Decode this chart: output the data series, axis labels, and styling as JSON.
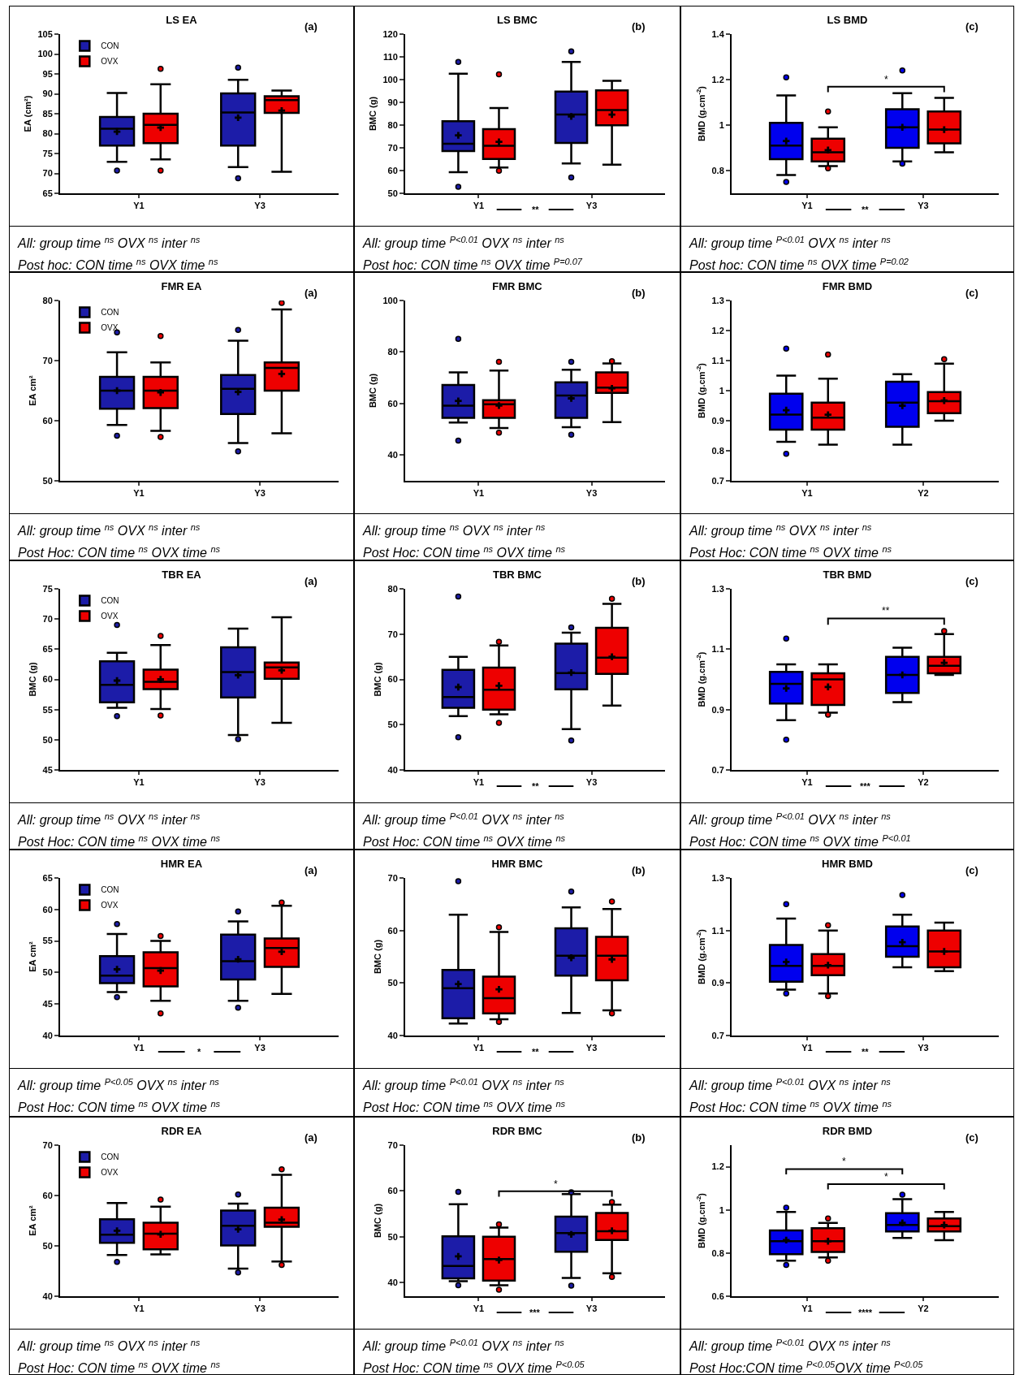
{
  "chart_data": [
    {
      "type": "box",
      "title": "LS EA",
      "subtitle": "(a)",
      "ylabel": "EA (cm²)",
      "categories": [
        "Y1",
        "Y3"
      ],
      "ylim": [
        65,
        105
      ],
      "yticks": [
        65,
        70,
        75,
        80,
        85,
        90,
        95,
        100,
        105
      ],
      "legend": "top left",
      "series": [
        {
          "name": "CON",
          "color": "#1c1ca8",
          "boxes": [
            {
              "low": 72.9,
              "q1": 77.0,
              "median": 81.2,
              "q3": 84.2,
              "high": 90.2,
              "mean": 80.5,
              "outliers": [
                70.7
              ]
            },
            {
              "low": 71.6,
              "q1": 77.0,
              "median": 85.3,
              "q3": 90.1,
              "high": 93.5,
              "mean": 84,
              "outliers": [
                96.6,
                68.8
              ]
            }
          ]
        },
        {
          "name": "OVX",
          "color": "#ee0000",
          "boxes": [
            {
              "low": 73.5,
              "q1": 77.6,
              "median": 82.2,
              "q3": 85.0,
              "high": 92.4,
              "mean": 81.5,
              "outliers": [
                96.3,
                70.7
              ]
            },
            {
              "low": 70.4,
              "q1": 85.2,
              "median": 88.4,
              "q3": 89.4,
              "high": 90.8,
              "mean": 85.8
            }
          ]
        }
      ],
      "annotations": [
        "All: group time $^{ns}$ OVX $^{ns}$ inter $^{ns}$",
        "Post hoc: CON time $^{ns}$ OVX time $^{ns}$"
      ]
    },
    {
      "type": "box",
      "title": "LS BMC",
      "subtitle": "(b)",
      "ylabel": "BMC (g)",
      "categories": [
        "Y1",
        "Y3"
      ],
      "ylim": [
        50,
        120
      ],
      "yticks": [
        50,
        60,
        70,
        80,
        90,
        100,
        110,
        120
      ],
      "series": [
        {
          "color": "#1c1ca8",
          "boxes": [
            {
              "low": 59.3,
              "q1": 68.6,
              "median": 71.8,
              "q3": 81.7,
              "high": 102.6,
              "mean": 75.5,
              "outliers": [
                107.8,
                52.9
              ]
            },
            {
              "low": 63.1,
              "q1": 72.1,
              "median": 84.6,
              "q3": 94.7,
              "high": 107.8,
              "mean": 83.8,
              "outliers": [
                112.4,
                57.0
              ]
            }
          ]
        },
        {
          "color": "#ee0000",
          "boxes": [
            {
              "low": 61.3,
              "q1": 65.1,
              "median": 70.9,
              "q3": 78.2,
              "high": 87.5,
              "mean": 72.6,
              "outliers": [
                102.3,
                59.9
              ]
            },
            {
              "low": 62.6,
              "q1": 79.9,
              "median": 86.6,
              "q3": 95.3,
              "high": 99.5,
              "mean": 84.6
            }
          ]
        }
      ],
      "annotations": [
        "**",
        "All: group time $^{P<0.01}$ OVX $^{ns}$ inter $^{ns}$",
        "Post hoc: CON time $^{ns}$ OVX time $^{P=0.07}$"
      ]
    },
    {
      "type": "box",
      "title": "LS BMD",
      "subtitle": "(c)",
      "ylabel": "BMD (g.cm$^{-2}$)",
      "categories": [
        "Y1",
        "Y3"
      ],
      "ylim": [
        0.7,
        1.4
      ],
      "yticks": [
        0.8,
        1.0,
        1.2,
        1.4
      ],
      "series": [
        {
          "color": "#0000ee",
          "boxes": [
            {
              "low": 0.78,
              "q1": 0.85,
              "median": 0.91,
              "q3": 1.01,
              "high": 1.13,
              "mean": 0.93,
              "outliers": [
                1.21,
                0.75
              ]
            },
            {
              "low": 0.84,
              "q1": 0.9,
              "median": 0.99,
              "q3": 1.07,
              "high": 1.14,
              "mean": 0.99,
              "outliers": [
                1.24,
                0.83
              ]
            }
          ]
        },
        {
          "color": "#ee0000",
          "boxes": [
            {
              "low": 0.82,
              "q1": 0.84,
              "median": 0.88,
              "q3": 0.94,
              "high": 0.99,
              "mean": 0.89,
              "outliers": [
                1.06,
                0.81
              ]
            },
            {
              "low": 0.88,
              "q1": 0.92,
              "median": 0.98,
              "q3": 1.06,
              "high": 1.12,
              "mean": 0.98
            }
          ]
        }
      ],
      "annotations": [
        "*",
        "**",
        "All: group time $^{P<0.01}$ OVX $^{ns}$ inter $^{ns}$",
        "Post hoc: CON time $^{ns}$ OVX time $^{P=0.02}$"
      ]
    },
    {
      "type": "box",
      "title": "FMR EA",
      "subtitle": "(a)",
      "ylabel": "EA cm²",
      "categories": [
        "Y1",
        "Y3"
      ],
      "ylim": [
        50,
        80
      ],
      "yticks": [
        50,
        60,
        70,
        80
      ],
      "legend": "top left",
      "series": [
        {
          "name": "CON",
          "color": "#1c1ca8",
          "boxes": [
            {
              "low": 59.3,
              "q1": 62.0,
              "median": 65.0,
              "q3": 67.3,
              "high": 71.4,
              "mean": 65,
              "outliers": [
                74.7,
                57.5
              ]
            },
            {
              "low": 56.3,
              "q1": 61.1,
              "median": 65.3,
              "q3": 67.6,
              "high": 73.3,
              "mean": 64.8,
              "outliers": [
                75.1,
                54.9
              ]
            }
          ]
        },
        {
          "name": "OVX",
          "color": "#ee0000",
          "boxes": [
            {
              "low": 58.3,
              "q1": 62.1,
              "median": 65.0,
              "q3": 67.3,
              "high": 69.7,
              "mean": 64.7,
              "outliers": [
                74.1,
                57.3
              ]
            },
            {
              "low": 57.9,
              "q1": 65.0,
              "median": 68.8,
              "q3": 69.7,
              "high": 78.5,
              "mean": 67.8,
              "outliers": [
                79.6
              ]
            }
          ]
        }
      ],
      "annotations": [
        "All: group time $^{ns}$ OVX $^{ns}$ inter $^{ns}$",
        "Post Hoc: CON time $^{ns}$ OVX time $^{ns}$"
      ]
    },
    {
      "type": "box",
      "title": "FMR BMC",
      "subtitle": "(b)",
      "ylabel": "BMC (g)",
      "categories": [
        "Y1",
        "Y3"
      ],
      "ylim": [
        30,
        100
      ],
      "yticks": [
        40,
        60,
        80,
        100
      ],
      "series": [
        {
          "color": "#1c1ca8",
          "boxes": [
            {
              "low": 52.6,
              "q1": 54.4,
              "median": 59.2,
              "q3": 67.2,
              "high": 72.1,
              "mean": 61,
              "outliers": [
                85.1,
                45.6
              ]
            },
            {
              "low": 50.8,
              "q1": 54.4,
              "median": 63.1,
              "q3": 68.2,
              "high": 73.1,
              "mean": 62,
              "outliers": [
                76.2,
                47.9
              ]
            }
          ]
        },
        {
          "color": "#ee0000",
          "boxes": [
            {
              "low": 50.5,
              "q1": 54.4,
              "median": 59.7,
              "q3": 61.3,
              "high": 72.8,
              "mean": 59.2,
              "outliers": [
                76.2,
                48.7
              ]
            },
            {
              "low": 52.8,
              "q1": 64.1,
              "median": 66.2,
              "q3": 72.1,
              "high": 75.6,
              "mean": 65.9,
              "outliers": [
                76.4
              ]
            }
          ]
        }
      ],
      "annotations": [
        "All: group time $^{ns}$ OVX $^{ns}$ inter $^{ns}$",
        "Post Hoc: CON time $^{ns}$ OVX time $^{ns}$"
      ]
    },
    {
      "type": "box",
      "title": "FMR BMD",
      "subtitle": "(c)",
      "ylabel": "BMD (g.cm$^{-2}$)",
      "categories": [
        "Y1",
        "Y2"
      ],
      "ylim": [
        0.7,
        1.3
      ],
      "yticks": [
        0.7,
        0.8,
        0.9,
        1.0,
        1.1,
        1.2,
        1.3
      ],
      "series": [
        {
          "color": "#0000ee",
          "boxes": [
            {
              "low": 0.83,
              "q1": 0.87,
              "median": 0.92,
              "q3": 0.99,
              "high": 1.05,
              "mean": 0.935,
              "outliers": [
                1.14,
                0.79
              ]
            },
            {
              "low": 0.82,
              "q1": 0.88,
              "median": 0.96,
              "q3": 1.03,
              "high": 1.055,
              "mean": 0.95
            }
          ]
        },
        {
          "color": "#ee0000",
          "boxes": [
            {
              "low": 0.82,
              "q1": 0.87,
              "median": 0.91,
              "q3": 0.96,
              "high": 1.04,
              "mean": 0.92,
              "outliers": [
                1.12
              ]
            },
            {
              "low": 0.9,
              "q1": 0.925,
              "median": 0.965,
              "q3": 0.995,
              "high": 1.09,
              "mean": 0.967,
              "outliers": [
                1.105
              ]
            }
          ]
        }
      ],
      "annotations": [
        "All: group time $^{ns}$ OVX $^{ns}$ inter $^{ns}$",
        "Post Hoc: CON time $^{ns}$ OVX time $^{ns}$"
      ]
    },
    {
      "type": "box",
      "title": "TBR EA",
      "subtitle": "(a)",
      "ylabel": "BMC (g)",
      "categories": [
        "Y1",
        "Y3"
      ],
      "ylim": [
        45,
        75
      ],
      "yticks": [
        45,
        50,
        55,
        60,
        65,
        70,
        75
      ],
      "legend": "top left",
      "series": [
        {
          "name": "CON",
          "color": "#1c1ca8",
          "boxes": [
            {
              "low": 55.3,
              "q1": 56.2,
              "median": 59.1,
              "q3": 63.0,
              "high": 64.4,
              "mean": 59.8,
              "outliers": [
                69.0,
                53.9
              ]
            },
            {
              "low": 50.8,
              "q1": 57.0,
              "median": 61.2,
              "q3": 65.3,
              "high": 68.4,
              "mean": 60.7,
              "outliers": [
                50.1
              ]
            }
          ]
        },
        {
          "name": "OVX",
          "color": "#ee0000",
          "boxes": [
            {
              "low": 55.1,
              "q1": 58.4,
              "median": 59.6,
              "q3": 61.6,
              "high": 65.7,
              "mean": 60,
              "outliers": [
                67.2,
                54.0
              ]
            },
            {
              "low": 52.8,
              "q1": 60.1,
              "median": 62.0,
              "q3": 62.8,
              "high": 70.3,
              "mean": 61.5
            }
          ]
        }
      ],
      "annotations": [
        "All: group time $^{ns}$ OVX $^{ns}$ inter $^{ns}$",
        "Post Hoc: CON time $^{ns}$ OVX time $^{ns}$"
      ]
    },
    {
      "type": "box",
      "title": "TBR BMC",
      "subtitle": "(b)",
      "ylabel": "BMC (g)",
      "categories": [
        "Y1",
        "Y3"
      ],
      "ylim": [
        40,
        80
      ],
      "yticks": [
        40,
        50,
        60,
        70,
        80
      ],
      "series": [
        {
          "color": "#1c1ca8",
          "boxes": [
            {
              "low": 51.9,
              "q1": 53.7,
              "median": 56.1,
              "q3": 62.1,
              "high": 65,
              "mean": 58.3,
              "outliers": [
                78.3,
                47.2
              ]
            },
            {
              "low": 49,
              "q1": 57.8,
              "median": 61.4,
              "q3": 67.9,
              "high": 70.3,
              "mean": 61.5,
              "outliers": [
                71.5,
                46.5
              ]
            }
          ]
        },
        {
          "color": "#ee0000",
          "boxes": [
            {
              "low": 52.3,
              "q1": 53.3,
              "median": 57.7,
              "q3": 62.6,
              "high": 67.5,
              "mean": 58.6,
              "outliers": [
                68.3,
                50.4
              ]
            },
            {
              "low": 54.2,
              "q1": 61.2,
              "median": 64.8,
              "q3": 71.4,
              "high": 76.7,
              "mean": 65,
              "outliers": [
                77.8
              ]
            }
          ]
        }
      ],
      "annotations": [
        "**",
        "All: group time $^{P<0.01}$ OVX $^{ns}$ inter $^{ns}$",
        "Post Hoc: CON time $^{ns}$ OVX time $^{ns}$"
      ]
    },
    {
      "type": "box",
      "title": "TBR BMD",
      "subtitle": "(c)",
      "ylabel": "BMD (g.cm$^{-2}$)",
      "categories": [
        "Y1",
        "Y2"
      ],
      "ylim": [
        0.7,
        1.3
      ],
      "yticks": [
        0.7,
        0.9,
        1.1,
        1.3
      ],
      "series": [
        {
          "color": "#0000ee",
          "boxes": [
            {
              "low": 0.865,
              "q1": 0.92,
              "median": 0.985,
              "q3": 1.025,
              "high": 1.05,
              "mean": 0.97,
              "outliers": [
                1.135,
                0.8
              ]
            },
            {
              "low": 0.925,
              "q1": 0.955,
              "median": 1.015,
              "q3": 1.075,
              "high": 1.105,
              "mean": 1.015
            }
          ]
        },
        {
          "color": "#ee0000",
          "boxes": [
            {
              "low": 0.89,
              "q1": 0.915,
              "median": 1.0,
              "q3": 1.02,
              "high": 1.05,
              "mean": 0.975,
              "outliers": [
                0.883
              ]
            },
            {
              "low": 1.015,
              "q1": 1.02,
              "median": 1.045,
              "q3": 1.075,
              "high": 1.15,
              "mean": 1.055,
              "outliers": [
                1.16
              ]
            }
          ]
        }
      ],
      "annotations": [
        "**",
        "***",
        "All: group time $^{P<0.01}$ OVX $^{ns}$ inter $^{ns}$",
        "Post Hoc: CON time $^{ns}$ OVX time $^{P<0.01}$"
      ]
    },
    {
      "type": "box",
      "title": "HMR EA",
      "subtitle": "(a)",
      "ylabel": "EA cm²",
      "categories": [
        "Y1",
        "Y3"
      ],
      "ylim": [
        40,
        65
      ],
      "yticks": [
        40,
        45,
        50,
        55,
        60,
        65
      ],
      "legend": "top left",
      "series": [
        {
          "name": "CON",
          "color": "#1c1ca8",
          "boxes": [
            {
              "low": 46.9,
              "q1": 48.3,
              "median": 49.5,
              "q3": 52.6,
              "high": 56.1,
              "mean": 50.5,
              "outliers": [
                57.7,
                46.1
              ]
            },
            {
              "low": 45.5,
              "q1": 48.9,
              "median": 51.8,
              "q3": 56.0,
              "high": 58.1,
              "mean": 52.1,
              "outliers": [
                59.7,
                44.4
              ]
            }
          ]
        },
        {
          "name": "OVX",
          "color": "#ee0000",
          "boxes": [
            {
              "low": 45.5,
              "q1": 47.8,
              "median": 50.7,
              "q3": 53.2,
              "high": 55.0,
              "mean": 50.3,
              "outliers": [
                55.8,
                43.5
              ]
            },
            {
              "low": 46.6,
              "q1": 50.9,
              "median": 53.9,
              "q3": 55.4,
              "high": 60.6,
              "mean": 53.3,
              "outliers": [
                61.1
              ]
            }
          ]
        }
      ],
      "annotations": [
        "*",
        "All: group time $^{P<0.05}$ OVX $^{ns}$ inter $^{ns}$",
        "Post Hoc: CON time $^{ns}$ OVX time $^{ns}$"
      ]
    },
    {
      "type": "box",
      "title": "HMR BMC",
      "subtitle": "(b)",
      "ylabel": "BMC (g)",
      "categories": [
        "Y1",
        "Y3"
      ],
      "ylim": [
        40,
        70
      ],
      "yticks": [
        40,
        50,
        60,
        70
      ],
      "series": [
        {
          "color": "#1c1ca8",
          "boxes": [
            {
              "low": 42.3,
              "q1": 43.3,
              "median": 49,
              "q3": 52.5,
              "high": 63,
              "mean": 49.8,
              "outliers": [
                69.4
              ]
            },
            {
              "low": 44.3,
              "q1": 51.4,
              "median": 55.2,
              "q3": 60.4,
              "high": 64.4,
              "mean": 54.8,
              "outliers": [
                67.4
              ]
            }
          ]
        },
        {
          "color": "#ee0000",
          "boxes": [
            {
              "low": 43.1,
              "q1": 44.2,
              "median": 47.1,
              "q3": 51.2,
              "high": 59.7,
              "mean": 48.8,
              "outliers": [
                60.6,
                42.6
              ]
            },
            {
              "low": 44.8,
              "q1": 50.5,
              "median": 55.2,
              "q3": 58.8,
              "high": 64.1,
              "mean": 54.5,
              "outliers": [
                65.5,
                44.2
              ]
            }
          ]
        }
      ],
      "annotations": [
        "**",
        "All: group time $^{P<0.01}$ OVX $^{ns}$ inter $^{ns}$",
        "Post Hoc: CON time $^{ns}$ OVX time $^{ns}$"
      ]
    },
    {
      "type": "box",
      "title": "HMR BMD",
      "subtitle": "(c)",
      "ylabel": "BMD (g.cm$^{-2}$)",
      "categories": [
        "Y1",
        "Y3"
      ],
      "ylim": [
        0.7,
        1.3
      ],
      "yticks": [
        0.7,
        0.9,
        1.1,
        1.3
      ],
      "series": [
        {
          "color": "#0000ee",
          "boxes": [
            {
              "low": 0.875,
              "q1": 0.905,
              "median": 0.965,
              "q3": 1.045,
              "high": 1.145,
              "mean": 0.98,
              "outliers": [
                1.2,
                0.86
              ]
            },
            {
              "low": 0.96,
              "q1": 1.0,
              "median": 1.04,
              "q3": 1.115,
              "high": 1.16,
              "mean": 1.055,
              "outliers": [
                1.235
              ]
            }
          ]
        },
        {
          "color": "#ee0000",
          "boxes": [
            {
              "low": 0.86,
              "q1": 0.93,
              "median": 0.965,
              "q3": 1.01,
              "high": 1.1,
              "mean": 0.968,
              "outliers": [
                1.12,
                0.85
              ]
            },
            {
              "low": 0.945,
              "q1": 0.96,
              "median": 1.02,
              "q3": 1.1,
              "high": 1.13,
              "mean": 1.02
            }
          ]
        }
      ],
      "annotations": [
        "**",
        "All: group time $^{P<0.01}$ OVX $^{ns}$ inter $^{ns}$",
        "Post Hoc: CON time $^{ns}$ OVX time $^{ns}$"
      ]
    },
    {
      "type": "box",
      "title": "RDR EA",
      "subtitle": "(a)",
      "ylabel": "EA cm²",
      "categories": [
        "Y1",
        "Y3"
      ],
      "ylim": [
        40,
        70
      ],
      "yticks": [
        40,
        50,
        60,
        70
      ],
      "legend": "top left",
      "series": [
        {
          "name": "CON",
          "color": "#1c1ca8",
          "boxes": [
            {
              "low": 48.2,
              "q1": 50.6,
              "median": 52.2,
              "q3": 55.3,
              "high": 58.5,
              "mean": 53,
              "outliers": [
                46.8
              ]
            },
            {
              "low": 45.5,
              "q1": 50.1,
              "median": 54,
              "q3": 57,
              "high": 58.4,
              "mean": 53.3,
              "outliers": [
                60.2,
                44.7
              ]
            }
          ]
        },
        {
          "name": "OVX",
          "color": "#ee0000",
          "boxes": [
            {
              "low": 48.3,
              "q1": 49.3,
              "median": 52.4,
              "q3": 54.6,
              "high": 57.8,
              "mean": 52.3,
              "outliers": [
                59.2
              ]
            },
            {
              "low": 46.9,
              "q1": 53.8,
              "median": 54.6,
              "q3": 57.6,
              "high": 64.1,
              "mean": 55.2,
              "outliers": [
                65.2,
                46.2
              ]
            }
          ]
        }
      ],
      "annotations": [
        "All: group time $^{ns}$ OVX $^{ns}$ inter $^{ns}$",
        "Post Hoc: CON time $^{ns}$ OVX time $^{ns}$"
      ]
    },
    {
      "type": "box",
      "title": "RDR BMC",
      "subtitle": "(b)",
      "ylabel": "BMC (g)",
      "categories": [
        "Y1",
        "Y3"
      ],
      "ylim": [
        37,
        70
      ],
      "yticks": [
        40,
        50,
        60,
        70
      ],
      "series": [
        {
          "color": "#1c1ca8",
          "boxes": [
            {
              "low": 40.3,
              "q1": 40.9,
              "median": 43.6,
              "q3": 50.1,
              "high": 57.1,
              "mean": 45.7,
              "outliers": [
                59.8,
                39.4
              ]
            },
            {
              "low": 41,
              "q1": 46.7,
              "median": 50.8,
              "q3": 54.4,
              "high": 59.3,
              "mean": 50.5,
              "outliers": [
                59.7,
                39.3
              ]
            }
          ]
        },
        {
          "color": "#ee0000",
          "boxes": [
            {
              "low": 39.4,
              "q1": 40.4,
              "median": 45.1,
              "q3": 50,
              "high": 52,
              "mean": 44.9,
              "outliers": [
                52.7,
                38.4
              ]
            },
            {
              "low": 42,
              "q1": 49.3,
              "median": 51.2,
              "q3": 55.2,
              "high": 57,
              "mean": 51.3,
              "outliers": [
                57.6,
                41.2
              ]
            }
          ]
        }
      ],
      "annotations": [
        "*",
        "***",
        "All: group time $^{P<0.01}$ OVX $^{ns}$ inter $^{ns}$",
        "Post Hoc: CON time $^{ns}$ OVX time $^{P<0.05}$"
      ]
    },
    {
      "type": "box",
      "title": "RDR BMD",
      "subtitle": "(c)",
      "ylabel": "BMD (g.cm$^{-2}$)",
      "categories": [
        "Y1",
        "Y2"
      ],
      "ylim": [
        0.6,
        1.3
      ],
      "yticks": [
        0.6,
        0.8,
        1.0,
        1.2
      ],
      "series": [
        {
          "color": "#0000ee",
          "boxes": [
            {
              "low": 0.765,
              "q1": 0.795,
              "median": 0.855,
              "q3": 0.905,
              "high": 0.99,
              "mean": 0.86,
              "outliers": [
                1.01,
                0.745
              ]
            },
            {
              "low": 0.87,
              "q1": 0.9,
              "median": 0.93,
              "q3": 0.985,
              "high": 1.05,
              "mean": 0.94,
              "outliers": [
                1.07
              ]
            }
          ]
        },
        {
          "color": "#ee0000",
          "boxes": [
            {
              "low": 0.78,
              "q1": 0.805,
              "median": 0.855,
              "q3": 0.915,
              "high": 0.94,
              "mean": 0.855,
              "outliers": [
                0.96,
                0.765
              ]
            },
            {
              "low": 0.86,
              "q1": 0.9,
              "median": 0.925,
              "q3": 0.96,
              "high": 0.99,
              "mean": 0.93
            }
          ]
        }
      ],
      "annotations": [
        "*",
        "*",
        "****",
        "All: group time $^{P<0.01}$ OVX $^{ns}$ inter $^{ns}$",
        "Post Hoc:CON time $^{P<0.05}$OVX time $^{P<0.05}$"
      ]
    }
  ]
}
